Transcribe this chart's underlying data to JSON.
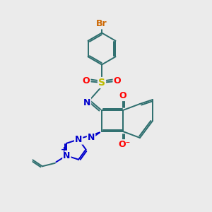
{
  "bg_color": "#ebebeb",
  "bond_color": "#2d6e6e",
  "bond_width": 1.4,
  "dbo": 0.07,
  "atom_colors": {
    "Br": "#cc6600",
    "S": "#bbbb00",
    "O": "#ff0000",
    "N": "#0000cc",
    "C": "#2d6e6e"
  }
}
